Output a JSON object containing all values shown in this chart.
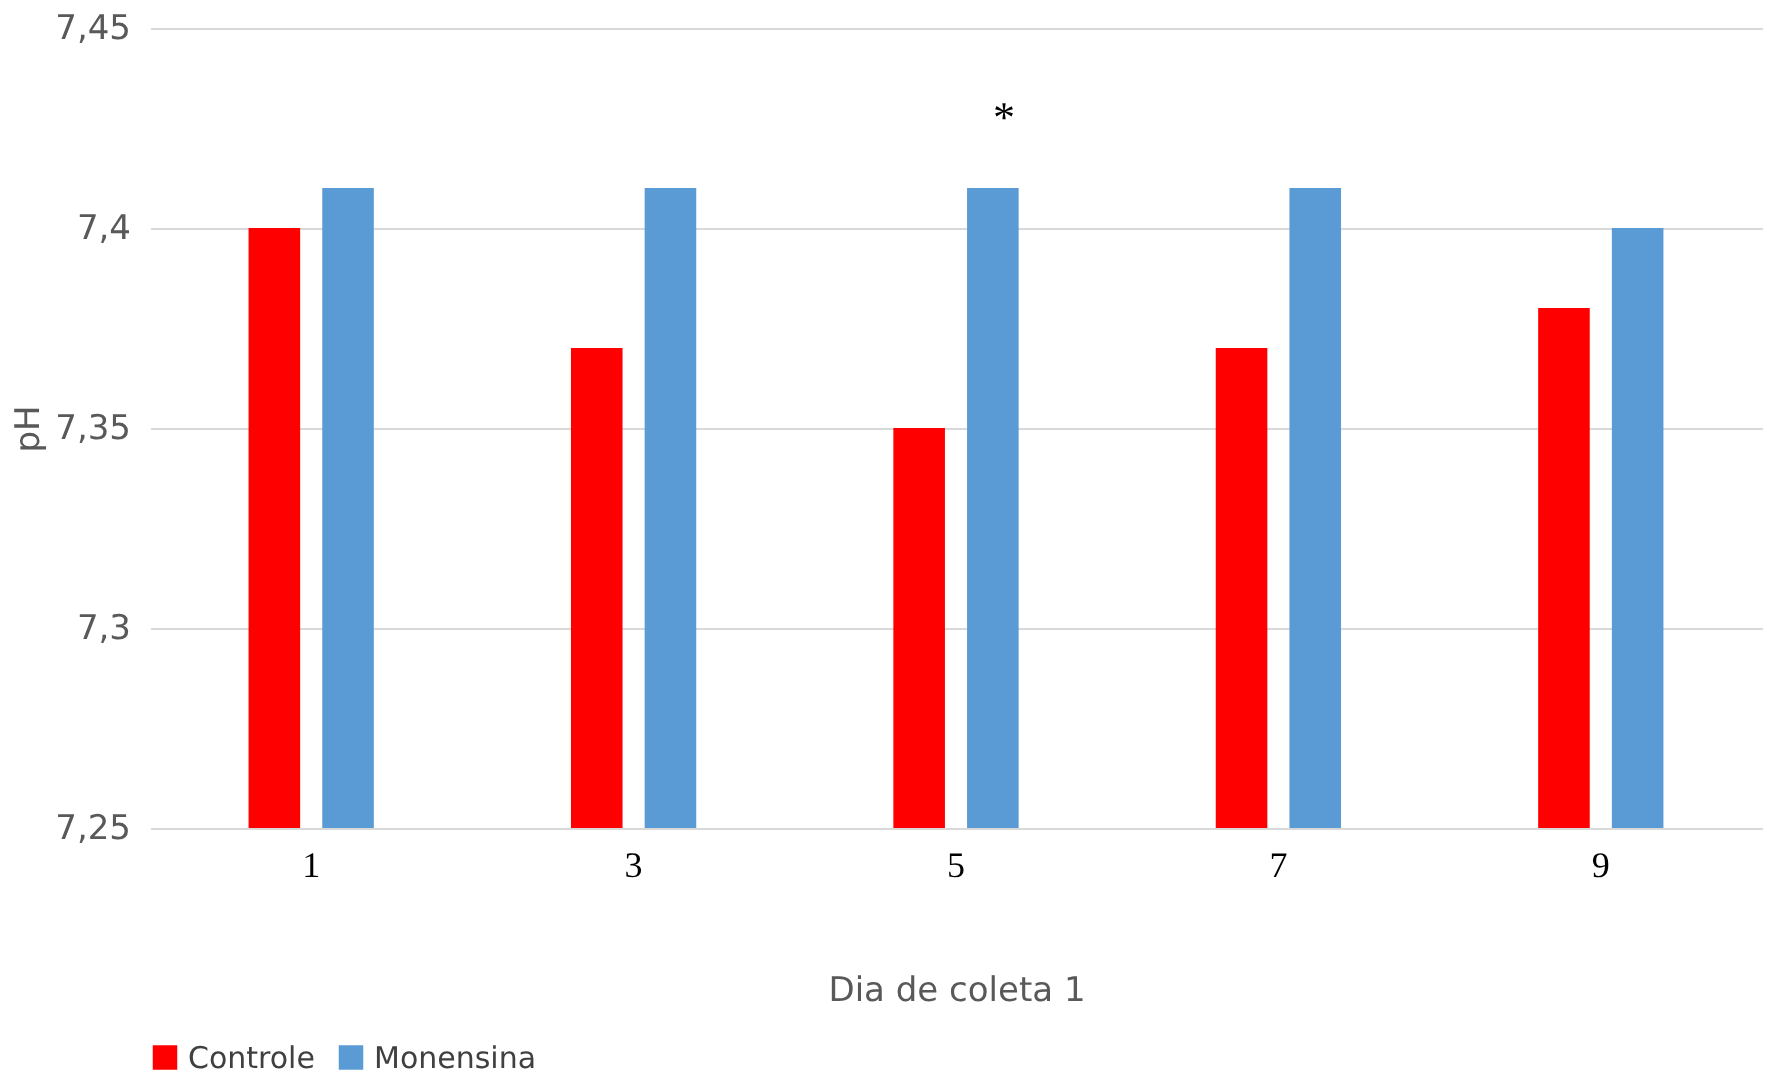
{
  "chart_data": {
    "type": "bar",
    "xlabel": "Dia de coleta 1",
    "ylabel": "pH",
    "categories": [
      "1",
      "3",
      "5",
      "7",
      "9"
    ],
    "series": [
      {
        "name": "Controle",
        "color": "#ff0000",
        "values": [
          7.4,
          7.37,
          7.35,
          7.37,
          7.38
        ]
      },
      {
        "name": "Monensina",
        "color": "#5b9bd5",
        "values": [
          7.41,
          7.41,
          7.41,
          7.41,
          7.4
        ]
      }
    ],
    "ylim": [
      7.25,
      7.45
    ],
    "yticks": [
      {
        "value": 7.25,
        "label": "7,25"
      },
      {
        "value": 7.3,
        "label": "7,3"
      },
      {
        "value": 7.35,
        "label": "7,35"
      },
      {
        "value": 7.4,
        "label": "7,4"
      },
      {
        "value": 7.45,
        "label": "7,45"
      }
    ],
    "grid": "y",
    "legend": "bottom",
    "annotations": [
      "*"
    ]
  }
}
